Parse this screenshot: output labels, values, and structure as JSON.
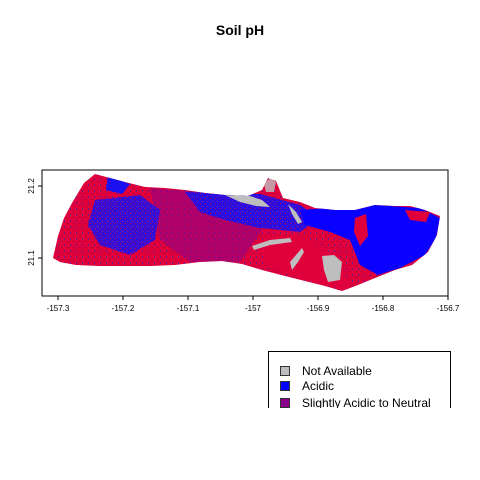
{
  "map": {
    "title": "Soil pH",
    "x_ticks": [
      "-157.3",
      "-157.2",
      "-157.1",
      "-157",
      "-156.9",
      "-156.8",
      "-156.7"
    ],
    "y_ticks": [
      "21.2",
      "21.1"
    ],
    "colors": {
      "not_available": "#bebebe",
      "acidic": "#0000ff",
      "slightly_acidic_to_neutral": "#8b008b",
      "dominant_west": "#e0003c"
    }
  },
  "legend": {
    "items": [
      {
        "label": "Not Available",
        "color": "#bebebe"
      },
      {
        "label": "Acidic",
        "color": "#0000ff"
      },
      {
        "label": "Slightly Acidic to Neutral",
        "color": "#8b008b"
      }
    ]
  }
}
